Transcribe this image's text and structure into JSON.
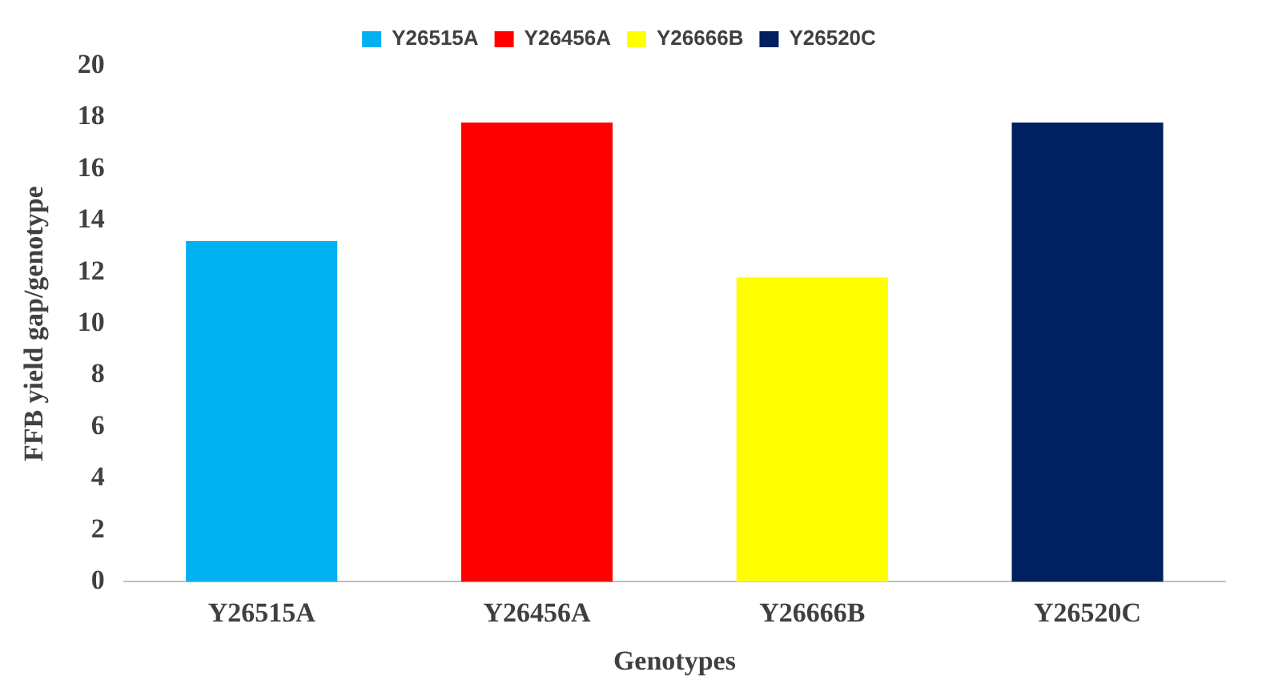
{
  "chart_data": {
    "type": "bar",
    "xlabel": "Genotypes",
    "ylabel": "FFB yield gap/genotype",
    "categories": [
      "Y26515A",
      "Y26456A",
      "Y26666B",
      "Y26520C"
    ],
    "series": [
      {
        "name": "Y26515A",
        "color": "#00b0f0",
        "values": [
          13.2,
          null,
          null,
          null
        ]
      },
      {
        "name": "Y26456A",
        "color": "#ff0000",
        "values": [
          null,
          17.8,
          null,
          null
        ]
      },
      {
        "name": "Y26666B",
        "color": "#ffff00",
        "values": [
          null,
          null,
          11.8,
          null
        ]
      },
      {
        "name": "Y26520C",
        "color": "#002060",
        "values": [
          null,
          null,
          null,
          17.8
        ]
      }
    ],
    "ylim": [
      0,
      20
    ],
    "yticks": [
      0,
      2,
      4,
      6,
      8,
      10,
      12,
      14,
      16,
      18,
      20
    ],
    "grid": false,
    "legend": "top"
  }
}
